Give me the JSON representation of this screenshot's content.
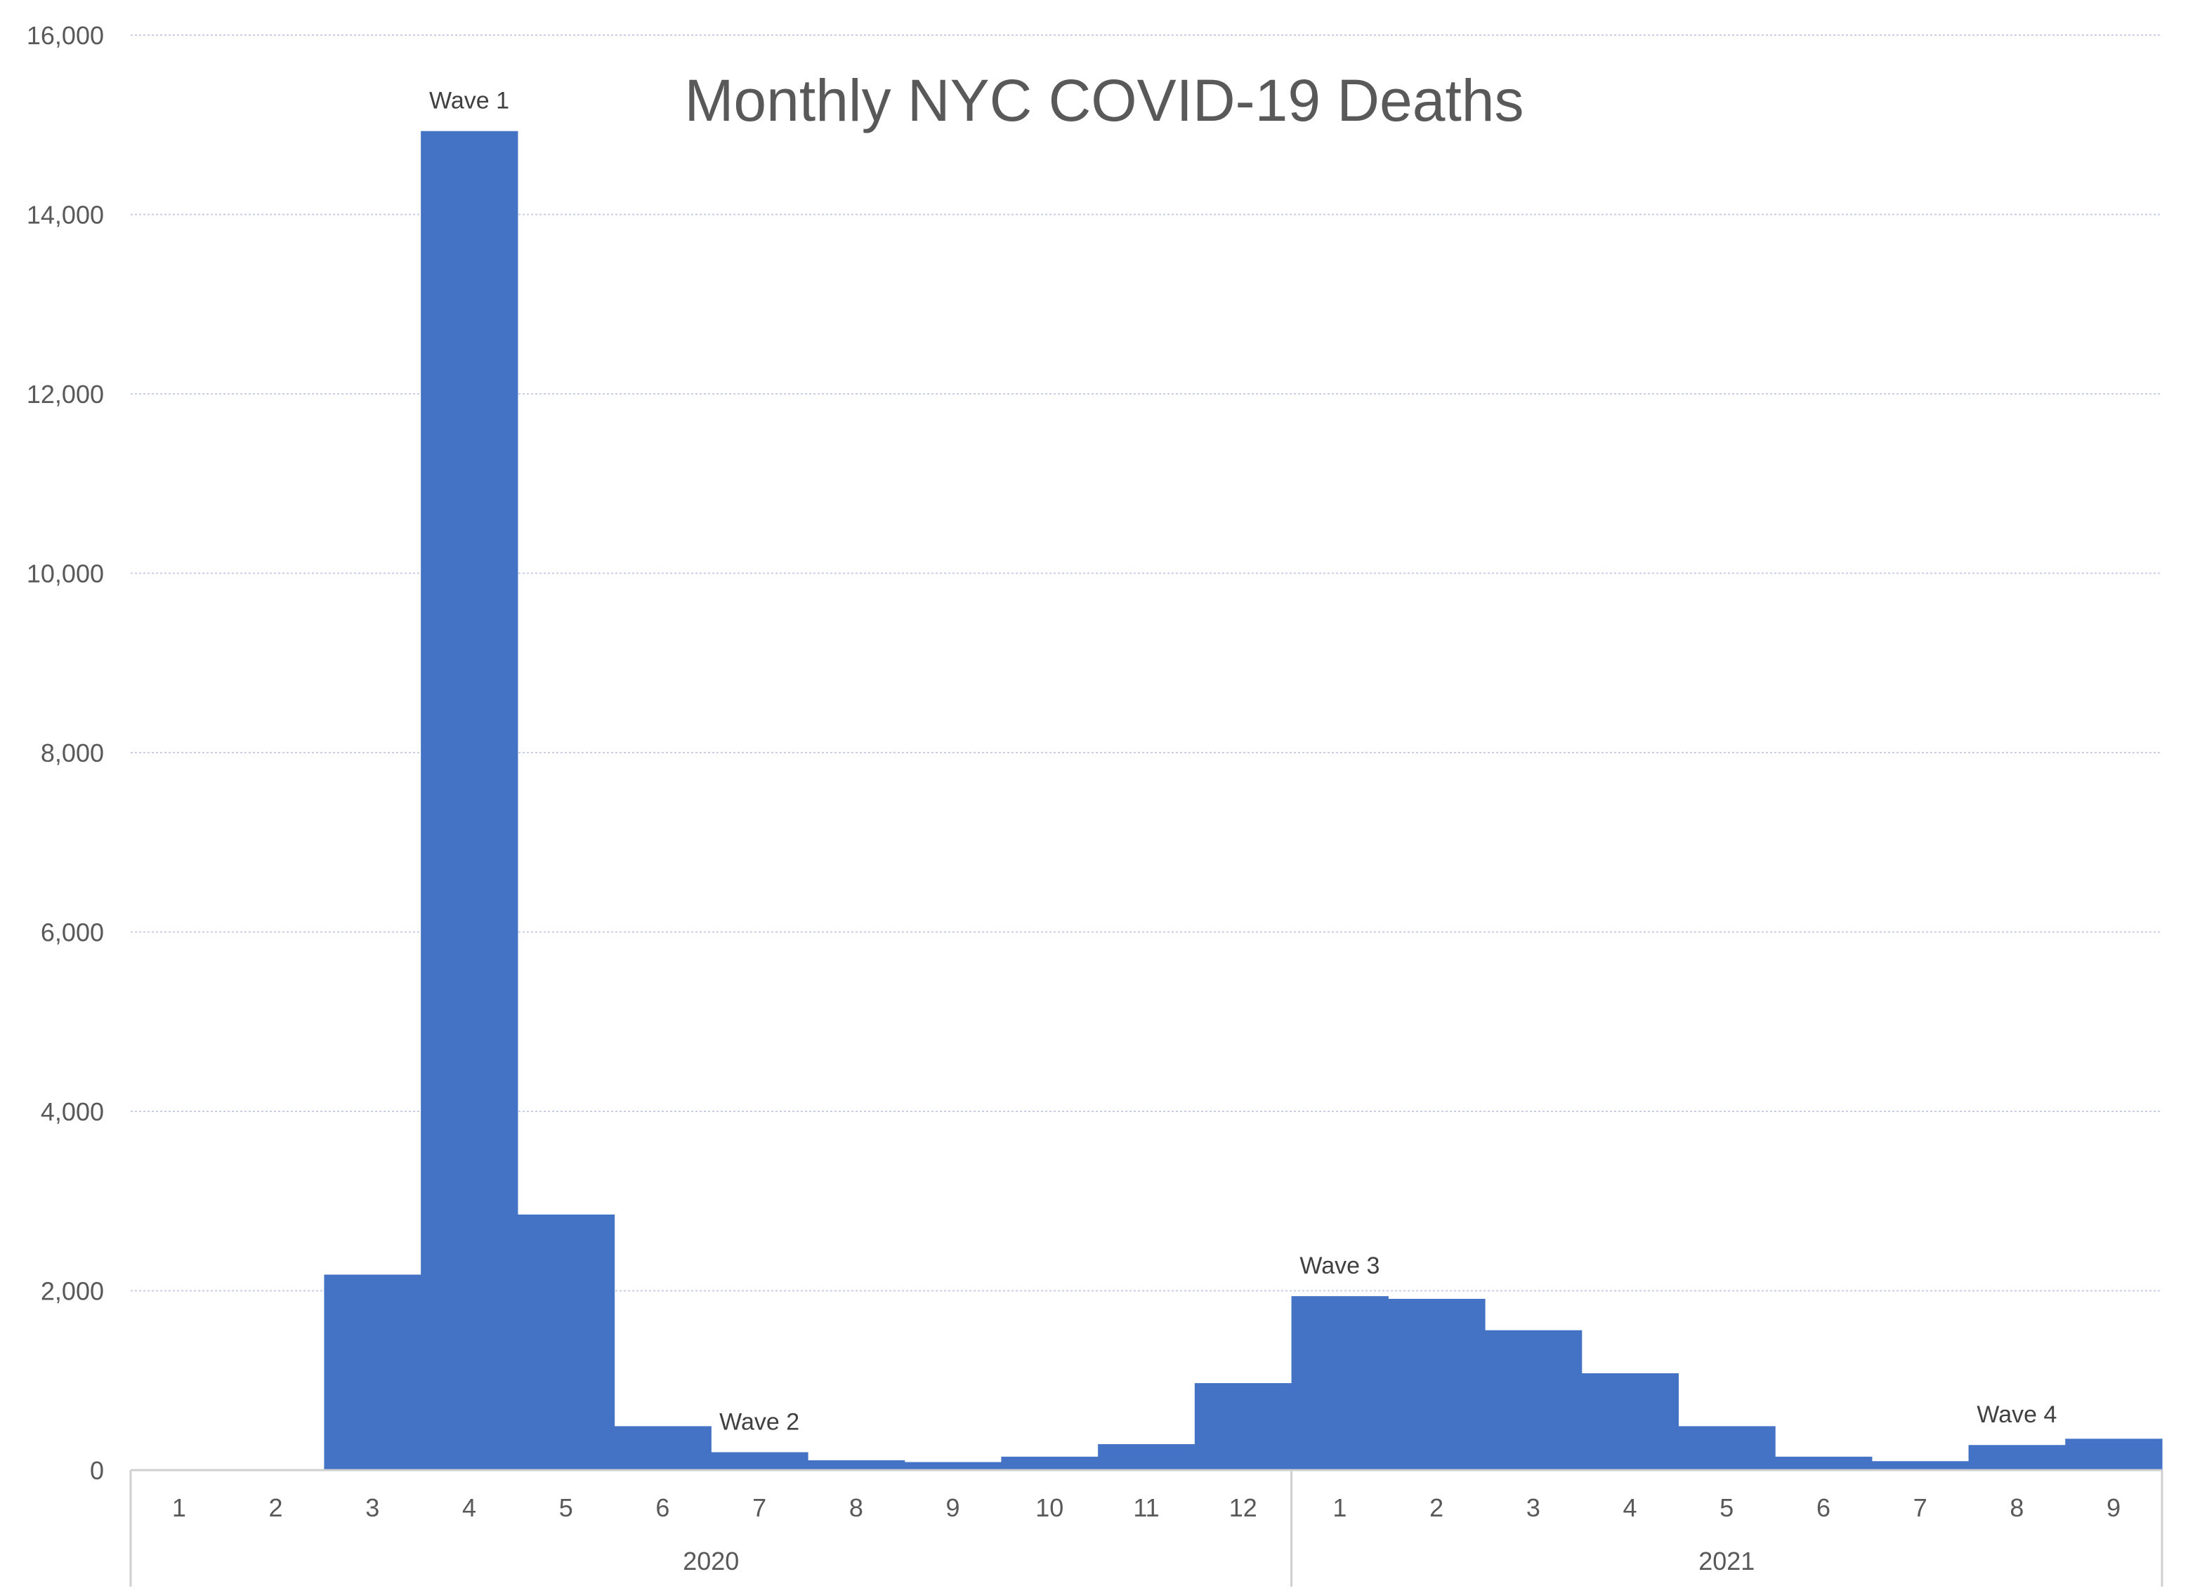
{
  "chart_data": {
    "type": "bar",
    "title": "Monthly NYC COVID-19 Deaths",
    "xlabel": "",
    "ylabel": "",
    "ylim": [
      0,
      16000
    ],
    "yticks": [
      0,
      2000,
      4000,
      6000,
      8000,
      10000,
      12000,
      14000,
      16000
    ],
    "ytick_labels": [
      "0",
      "2,000",
      "4,000",
      "6,000",
      "8,000",
      "10,000",
      "12,000",
      "14,000",
      "16,000"
    ],
    "grid": true,
    "categories": [
      "1",
      "2",
      "3",
      "4",
      "5",
      "6",
      "7",
      "8",
      "9",
      "10",
      "11",
      "12",
      "1",
      "2",
      "3",
      "4",
      "5",
      "6",
      "7",
      "8",
      "9"
    ],
    "groups": [
      {
        "label": "2020",
        "count": 12
      },
      {
        "label": "2021",
        "count": 9
      }
    ],
    "values": [
      0,
      0,
      2180,
      14930,
      2850,
      490,
      200,
      110,
      90,
      150,
      290,
      970,
      1940,
      1910,
      1560,
      1080,
      490,
      150,
      100,
      280,
      350
    ],
    "annotations": [
      {
        "text": "Wave 1",
        "index": 3
      },
      {
        "text": "Wave 2",
        "index": 6
      },
      {
        "text": "Wave 3",
        "index": 12
      },
      {
        "text": "Wave 4",
        "index": 19
      }
    ],
    "colors": {
      "bar": "#4472C4",
      "grid": "#C9CDE6",
      "axis": "#D0D0D0",
      "text": "#595959"
    }
  }
}
